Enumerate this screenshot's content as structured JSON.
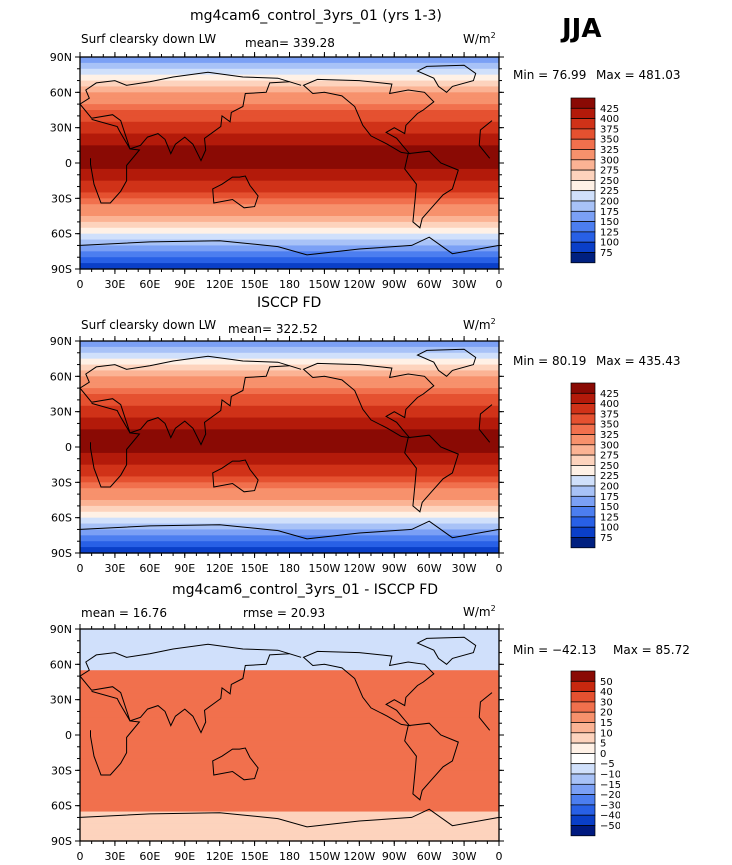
{
  "season": "JJA",
  "colors": {
    "map_scale": [
      "#002080",
      "#0a3fc8",
      "#2860e6",
      "#4c7ef0",
      "#7ba0f5",
      "#a8c2f7",
      "#d0e0fb",
      "#fff1e6",
      "#fdd3bd",
      "#fbb394",
      "#f7916c",
      "#f1704d",
      "#e55130",
      "#d03218",
      "#b31a0a",
      "#8a0a04"
    ],
    "diff_scale": [
      "#001a80",
      "#0a3fc8",
      "#2860e6",
      "#4c7ef0",
      "#7ba0f5",
      "#a8c2f7",
      "#d0e0fb",
      "#ffffff",
      "#fff1e6",
      "#fdd3bd",
      "#fbb394",
      "#f7916c",
      "#f1704d",
      "#e55130",
      "#c8280f",
      "#8a0a04"
    ]
  },
  "panels": [
    {
      "title": "mg4cam6_control_3yrs_01 (yrs 1-3)",
      "left_label": "Surf clearsky down LW",
      "stat_text": "mean= 339.28",
      "units": "W/m",
      "units_exp": "2",
      "min_text": "Min =  76.99",
      "max_text": "Max = 481.03",
      "field": {
        "mean": 339.28,
        "min": 76.99,
        "max": 481.03
      },
      "legend_levels": [
        "425",
        "400",
        "375",
        "350",
        "325",
        "300",
        "275",
        "250",
        "225",
        "200",
        "175",
        "150",
        "125",
        "100",
        "75"
      ]
    },
    {
      "title": "ISCCP FD",
      "left_label": "Surf clearsky down LW",
      "stat_text": "mean= 322.52",
      "units": "W/m",
      "units_exp": "2",
      "min_text": "Min =  80.19",
      "max_text": "Max = 435.43",
      "field": {
        "mean": 322.52,
        "min": 80.19,
        "max": 435.43
      },
      "legend_levels": [
        "425",
        "400",
        "375",
        "350",
        "325",
        "300",
        "275",
        "250",
        "225",
        "200",
        "175",
        "150",
        "125",
        "100",
        "75"
      ]
    },
    {
      "title": "mg4cam6_control_3yrs_01 - ISCCP FD",
      "left_label": "mean =   16.76",
      "stat_text": "rmse =   20.93",
      "units": "W/m",
      "units_exp": "2",
      "min_text": "Min = −42.13",
      "max_text": "Max =  85.72",
      "field": {
        "mean": 16.76,
        "rmse": 20.93,
        "min": -42.13,
        "max": 85.72
      },
      "legend_levels": [
        "50",
        "40",
        "30",
        "20",
        "15",
        "10",
        "5",
        "0",
        "−5",
        "−10",
        "−15",
        "−20",
        "−30",
        "−40",
        "−50"
      ]
    }
  ],
  "chart_data": [
    {
      "type": "heatmap",
      "title": "mg4cam6_control_3yrs_01 (yrs 1-3)",
      "variable": "Surf clearsky down LW",
      "units": "W/m2",
      "mean": 339.28,
      "min": 76.99,
      "max": 481.03,
      "xlabel": "",
      "ylabel": "",
      "x_ticks": [
        "0",
        "30E",
        "60E",
        "90E",
        "120E",
        "150E",
        "180",
        "150W",
        "120W",
        "90W",
        "60W",
        "30W",
        "0"
      ],
      "y_ticks": [
        "90N",
        "60N",
        "30N",
        "0",
        "30S",
        "60S",
        "90S"
      ],
      "contour_levels": [
        75,
        100,
        125,
        150,
        175,
        200,
        225,
        250,
        275,
        300,
        325,
        350,
        375,
        400,
        425
      ]
    },
    {
      "type": "heatmap",
      "title": "ISCCP FD",
      "variable": "Surf clearsky down LW",
      "units": "W/m2",
      "mean": 322.52,
      "min": 80.19,
      "max": 435.43,
      "x_ticks": [
        "0",
        "30E",
        "60E",
        "90E",
        "120E",
        "150E",
        "180",
        "150W",
        "120W",
        "90W",
        "60W",
        "30W",
        "0"
      ],
      "y_ticks": [
        "90N",
        "60N",
        "30N",
        "0",
        "30S",
        "60S",
        "90S"
      ],
      "contour_levels": [
        75,
        100,
        125,
        150,
        175,
        200,
        225,
        250,
        275,
        300,
        325,
        350,
        375,
        400,
        425
      ]
    },
    {
      "type": "heatmap",
      "title": "mg4cam6_control_3yrs_01 - ISCCP FD",
      "units": "W/m2",
      "mean": 16.76,
      "rmse": 20.93,
      "min": -42.13,
      "max": 85.72,
      "x_ticks": [
        "0",
        "30E",
        "60E",
        "90E",
        "120E",
        "150E",
        "180",
        "150W",
        "120W",
        "90W",
        "60W",
        "30W",
        "0"
      ],
      "y_ticks": [
        "90N",
        "60N",
        "30N",
        "0",
        "30S",
        "60S",
        "90S"
      ],
      "contour_levels": [
        -50,
        -40,
        -30,
        -20,
        -15,
        -10,
        -5,
        0,
        5,
        10,
        15,
        20,
        30,
        40,
        50
      ]
    }
  ]
}
